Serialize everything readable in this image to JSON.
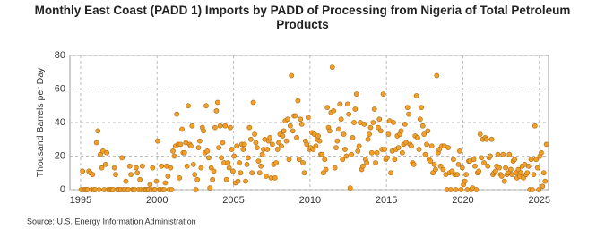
{
  "chart_data": {
    "type": "scatter",
    "title": "Monthly East Coast (PADD 1) Imports by PADD of Processing from Nigeria of Total Petroleum Products",
    "y_label": "Thousand Barrels per Day",
    "source": "Source: U.S. Energy Information Administration",
    "color": "#f0a02a",
    "xlim": [
      1994.3,
      2025.6
    ],
    "xticks": [
      1995,
      2000,
      2005,
      2010,
      2015,
      2020,
      2025
    ],
    "ylim": [
      0,
      80
    ],
    "yticks": [
      0,
      20,
      40,
      60,
      80
    ],
    "grid": true,
    "x": [
      1995.04,
      1995.13,
      1995.21,
      1995.29,
      1995.38,
      1995.46,
      1995.54,
      1995.63,
      1995.71,
      1995.79,
      1995.88,
      1995.96,
      1996.04,
      1996.13,
      1996.21,
      1996.29,
      1996.38,
      1996.46,
      1996.54,
      1996.63,
      1996.71,
      1996.79,
      1996.88,
      1996.96,
      1997.04,
      1997.13,
      1997.21,
      1997.29,
      1997.38,
      1997.46,
      1997.54,
      1997.63,
      1997.71,
      1997.79,
      1997.88,
      1997.96,
      1998.04,
      1998.13,
      1998.21,
      1998.29,
      1998.38,
      1998.46,
      1998.54,
      1998.63,
      1998.71,
      1998.79,
      1998.88,
      1998.96,
      1999.04,
      1999.13,
      1999.21,
      1999.29,
      1999.38,
      1999.46,
      1999.54,
      1999.63,
      1999.71,
      1999.79,
      1999.88,
      1999.96,
      2000.04,
      2000.13,
      2000.21,
      2000.29,
      2000.38,
      2000.46,
      2000.54,
      2000.63,
      2000.71,
      2000.79,
      2000.88,
      2000.96,
      2001.04,
      2001.13,
      2001.21,
      2001.29,
      2001.38,
      2001.46,
      2001.54,
      2001.63,
      2001.71,
      2001.79,
      2001.88,
      2001.96,
      2002.04,
      2002.13,
      2002.21,
      2002.29,
      2002.38,
      2002.46,
      2002.54,
      2002.63,
      2002.71,
      2002.79,
      2002.88,
      2002.96,
      2003.04,
      2003.13,
      2003.21,
      2003.29,
      2003.38,
      2003.46,
      2003.54,
      2003.63,
      2003.71,
      2003.79,
      2003.88,
      2003.96,
      2004.04,
      2004.13,
      2004.21,
      2004.29,
      2004.38,
      2004.46,
      2004.54,
      2004.63,
      2004.71,
      2004.79,
      2004.88,
      2004.96,
      2005.04,
      2005.13,
      2005.21,
      2005.29,
      2005.38,
      2005.46,
      2005.54,
      2005.63,
      2005.71,
      2005.79,
      2005.88,
      2005.96,
      2006.04,
      2006.13,
      2006.21,
      2006.29,
      2006.38,
      2006.46,
      2006.54,
      2006.63,
      2006.71,
      2006.79,
      2006.88,
      2006.96,
      2007.04,
      2007.13,
      2007.21,
      2007.29,
      2007.38,
      2007.46,
      2007.54,
      2007.63,
      2007.71,
      2007.79,
      2007.88,
      2007.96,
      2008.04,
      2008.13,
      2008.21,
      2008.29,
      2008.38,
      2008.46,
      2008.54,
      2008.63,
      2008.71,
      2008.79,
      2008.88,
      2008.96,
      2009.04,
      2009.13,
      2009.21,
      2009.29,
      2009.38,
      2009.46,
      2009.54,
      2009.63,
      2009.71,
      2009.79,
      2009.88,
      2009.96,
      2010.04,
      2010.13,
      2010.21,
      2010.29,
      2010.38,
      2010.46,
      2010.54,
      2010.63,
      2010.71,
      2010.79,
      2010.88,
      2010.96,
      2011.04,
      2011.13,
      2011.21,
      2011.29,
      2011.38,
      2011.46,
      2011.54,
      2011.63,
      2011.71,
      2011.79,
      2011.88,
      2011.96,
      2012.04,
      2012.13,
      2012.21,
      2012.29,
      2012.38,
      2012.46,
      2012.54,
      2012.63,
      2012.71,
      2012.79,
      2012.88,
      2012.96,
      2013.04,
      2013.13,
      2013.21,
      2013.29,
      2013.38,
      2013.46,
      2013.54,
      2013.63,
      2013.71,
      2013.79,
      2013.88,
      2013.96,
      2014.04,
      2014.13,
      2014.21,
      2014.29,
      2014.38,
      2014.46,
      2014.54,
      2014.63,
      2014.71,
      2014.79,
      2014.88,
      2014.96,
      2015.04,
      2015.13,
      2015.21,
      2015.29,
      2015.38,
      2015.46,
      2015.54,
      2015.63,
      2015.71,
      2015.79,
      2015.88,
      2015.96,
      2016.04,
      2016.13,
      2016.21,
      2016.29,
      2016.38,
      2016.46,
      2016.54,
      2016.63,
      2016.71,
      2016.79,
      2016.88,
      2016.96,
      2017.04,
      2017.13,
      2017.21,
      2017.29,
      2017.38,
      2017.46,
      2017.54,
      2017.63,
      2017.71,
      2017.79,
      2017.88,
      2017.96,
      2018.04,
      2018.13,
      2018.21,
      2018.29,
      2018.38,
      2018.46,
      2018.54,
      2018.63,
      2018.71,
      2018.79,
      2018.88,
      2018.96,
      2019.04,
      2019.13,
      2019.21,
      2019.29,
      2019.38,
      2019.46,
      2019.54,
      2019.63,
      2019.71,
      2019.79,
      2019.88,
      2019.96,
      2020.04,
      2020.13,
      2020.21,
      2020.29,
      2020.38,
      2020.46,
      2020.54,
      2020.63,
      2020.71,
      2020.79,
      2020.88,
      2020.96,
      2021.04,
      2021.13,
      2021.21,
      2021.29,
      2021.38,
      2021.46,
      2021.54,
      2021.63,
      2021.71,
      2021.79,
      2021.88,
      2021.96,
      2022.04,
      2022.13,
      2022.21,
      2022.29,
      2022.38,
      2022.46,
      2022.54,
      2022.63,
      2022.71,
      2022.79,
      2022.88,
      2022.96,
      2023.04,
      2023.13,
      2023.21,
      2023.29,
      2023.38,
      2023.46,
      2023.54,
      2023.63,
      2023.71,
      2023.79,
      2023.88,
      2023.96,
      2024.04,
      2024.13,
      2024.21,
      2024.29,
      2024.38,
      2024.46,
      2024.54,
      2024.63,
      2024.71,
      2024.79,
      2024.88,
      2024.96,
      2025.04,
      2025.13,
      2025.21,
      2025.29,
      2025.38,
      2025.46
    ],
    "values": [
      0,
      11,
      0,
      0,
      0,
      0,
      11,
      10,
      0,
      9,
      0,
      0,
      28,
      35,
      0,
      21,
      13,
      23,
      0,
      15,
      22,
      0,
      0,
      0,
      0,
      0,
      13,
      9,
      0,
      0,
      0,
      0,
      19,
      0,
      0,
      5,
      0,
      0,
      14,
      9,
      0,
      0,
      0,
      13,
      10,
      0,
      6,
      0,
      14,
      0,
      0,
      0,
      0,
      0,
      3,
      0,
      13,
      0,
      0,
      5,
      29,
      0,
      0,
      14,
      0,
      0,
      4,
      14,
      8,
      0,
      13,
      0,
      23,
      20,
      26,
      45,
      27,
      7,
      27,
      36,
      22,
      22,
      28,
      14,
      50,
      27,
      26,
      38,
      15,
      9,
      0,
      6,
      25,
      29,
      13,
      37,
      35,
      22,
      50,
      23,
      19,
      1,
      13,
      6,
      11,
      37,
      47,
      52,
      25,
      38,
      19,
      28,
      16,
      38,
      6,
      16,
      13,
      37,
      24,
      11,
      20,
      4,
      26,
      5,
      16,
      10,
      27,
      24,
      27,
      5,
      15,
      19,
      37,
      30,
      10,
      52,
      33,
      28,
      25,
      17,
      10,
      14,
      21,
      24,
      30,
      8,
      24,
      29,
      31,
      7,
      27,
      15,
      7,
      16,
      24,
      28,
      33,
      26,
      32,
      35,
      41,
      29,
      42,
      18,
      38,
      68,
      35,
      44,
      44,
      31,
      53,
      18,
      42,
      39,
      16,
      10,
      29,
      27,
      43,
      24,
      25,
      34,
      24,
      33,
      26,
      30,
      32,
      29,
      21,
      21,
      10,
      18,
      12,
      49,
      37,
      35,
      46,
      73,
      47,
      13,
      25,
      29,
      36,
      51,
      42,
      18,
      33,
      24,
      20,
      51,
      45,
      1,
      21,
      31,
      40,
      48,
      57,
      23,
      26,
      40,
      12,
      14,
      39,
      18,
      16,
      30,
      33,
      37,
      22,
      40,
      48,
      16,
      22,
      37,
      42,
      35,
      24,
      57,
      24,
      18,
      19,
      33,
      41,
      10,
      23,
      40,
      18,
      24,
      32,
      25,
      33,
      35,
      22,
      27,
      39,
      28,
      49,
      45,
      27,
      26,
      16,
      15,
      32,
      56,
      31,
      24,
      42,
      49,
      38,
      33,
      21,
      27,
      35,
      18,
      17,
      26,
      10,
      15,
      12,
      68,
      22,
      24,
      14,
      26,
      12,
      26,
      9,
      0,
      25,
      10,
      0,
      11,
      18,
      9,
      0,
      9,
      15,
      23,
      0,
      13,
      3,
      5,
      9,
      0,
      17,
      17,
      0,
      1,
      18,
      14,
      0,
      10,
      11,
      33,
      19,
      30,
      16,
      31,
      30,
      14,
      19,
      20,
      30,
      9,
      10,
      11,
      14,
      21,
      13,
      9,
      8,
      21,
      5,
      13,
      9,
      10,
      21,
      12,
      9,
      17,
      18,
      10,
      7,
      12,
      8,
      10,
      14,
      7,
      15,
      9,
      10,
      14,
      0,
      18,
      0,
      9,
      38,
      18,
      13,
      0,
      20,
      22,
      2,
      10,
      5,
      27
    ]
  }
}
